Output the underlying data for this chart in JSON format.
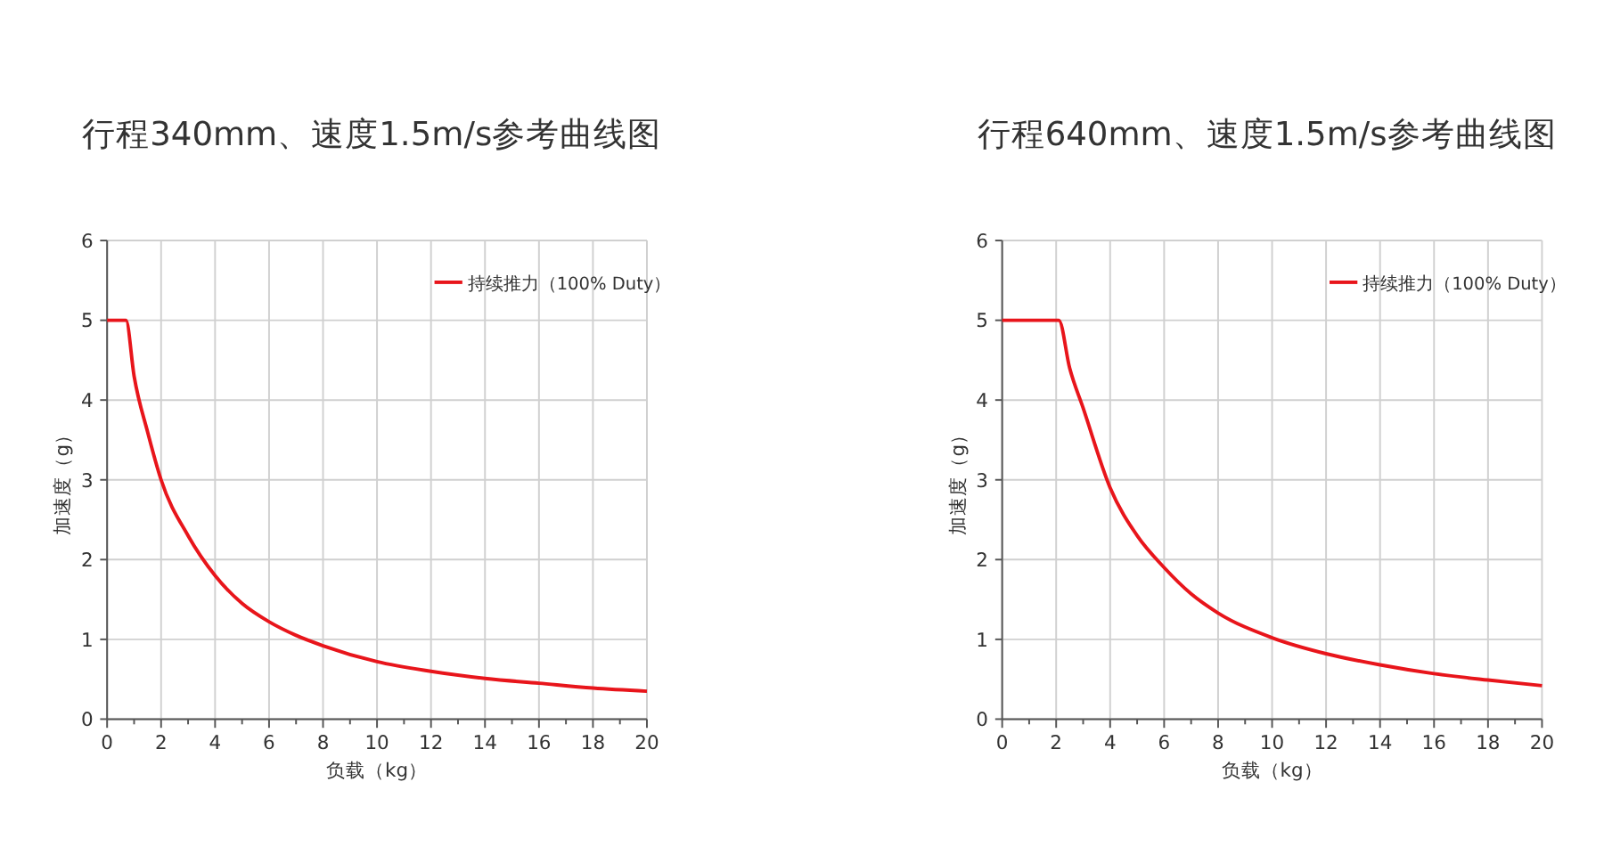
{
  "chart_data": [
    {
      "type": "line",
      "title": "行程340mm、速度1.5m/s参考曲线图",
      "xlabel": "负载（kg）",
      "ylabel": "加速度（g）",
      "xlim": [
        0,
        20
      ],
      "ylim": [
        0,
        6
      ],
      "xticks": [
        0,
        {
          "value": 1,
          "label": null
        },
        2,
        {
          "value": 3,
          "label": null
        },
        4,
        {
          "value": 5,
          "label": null
        },
        6,
        {
          "value": 7,
          "label": null
        },
        8,
        {
          "value": 9,
          "label": null
        },
        10,
        {
          "value": 11,
          "label": null
        },
        12,
        {
          "value": 13,
          "label": null
        },
        14,
        {
          "value": 15,
          "label": null
        },
        16,
        {
          "value": 17,
          "label": null
        },
        18,
        {
          "value": 19,
          "label": null
        },
        20
      ],
      "yticks": [
        0,
        1,
        2,
        3,
        4,
        5,
        6
      ],
      "grid": true,
      "legend": "top right",
      "marker": "none",
      "line_style": "solid",
      "series": [
        {
          "name": "持续推力（100% Duty）",
          "color": "#e8151b",
          "x": [
            0,
            0.7,
            1,
            1.5,
            2,
            3,
            4,
            5,
            6,
            7,
            8,
            10,
            12,
            14,
            16,
            18,
            20
          ],
          "values": [
            5,
            5,
            4.3,
            3.6,
            3.0,
            2.3,
            1.8,
            1.45,
            1.22,
            1.05,
            0.92,
            0.72,
            0.6,
            0.51,
            0.45,
            0.39,
            0.35
          ]
        }
      ]
    },
    {
      "type": "line",
      "title": "行程640mm、速度1.5m/s参考曲线图",
      "xlabel": "负载（kg）",
      "ylabel": "加速度（g）",
      "xlim": [
        0,
        20
      ],
      "ylim": [
        0,
        6
      ],
      "xticks": [
        0,
        {
          "value": 1,
          "label": null
        },
        2,
        {
          "value": 3,
          "label": null
        },
        4,
        {
          "value": 5,
          "label": null
        },
        6,
        {
          "value": 7,
          "label": null
        },
        8,
        {
          "value": 9,
          "label": null
        },
        10,
        {
          "value": 11,
          "label": null
        },
        12,
        {
          "value": 13,
          "label": null
        },
        14,
        {
          "value": 15,
          "label": null
        },
        16,
        {
          "value": 17,
          "label": null
        },
        18,
        {
          "value": 19,
          "label": null
        },
        20
      ],
      "yticks": [
        0,
        1,
        2,
        3,
        4,
        5,
        6
      ],
      "grid": true,
      "legend": "top right",
      "marker": "none",
      "line_style": "solid",
      "series": [
        {
          "name": "持续推力（100% Duty）",
          "color": "#e8151b",
          "x": [
            0,
            2.1,
            2.5,
            3,
            4,
            5,
            6,
            7,
            8,
            10,
            12,
            14,
            16,
            18,
            20
          ],
          "values": [
            5,
            5,
            4.4,
            3.9,
            2.9,
            2.3,
            1.9,
            1.57,
            1.33,
            1.02,
            0.82,
            0.68,
            0.57,
            0.49,
            0.42
          ]
        }
      ]
    }
  ]
}
